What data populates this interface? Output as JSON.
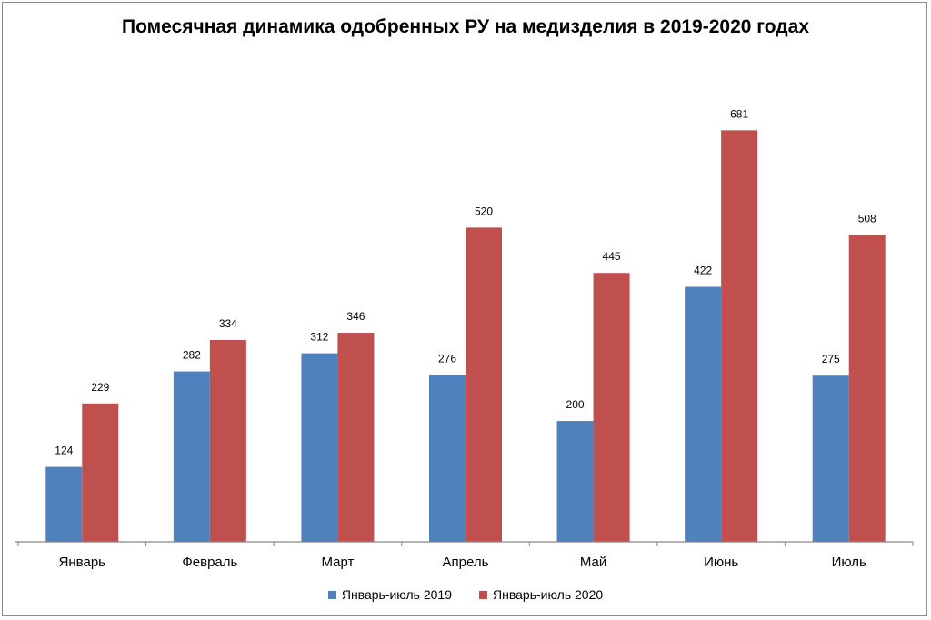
{
  "chart_data": {
    "type": "bar",
    "title": "Помесячная динамика одобренных РУ на медизделия в 2019-2020 годах",
    "categories": [
      "Январь",
      "Февраль",
      "Март",
      "Апрель",
      "Май",
      "Июнь",
      "Июль"
    ],
    "series": [
      {
        "name": "Январь-июль 2019",
        "values": [
          124,
          282,
          312,
          276,
          200,
          422,
          275
        ],
        "color": "#4f81bd"
      },
      {
        "name": "Январь-июль 2020",
        "values": [
          229,
          334,
          346,
          520,
          445,
          681,
          508
        ],
        "color": "#c0504d"
      }
    ],
    "ylim": [
      0,
      750
    ],
    "grid": false,
    "legend_position": "bottom"
  }
}
